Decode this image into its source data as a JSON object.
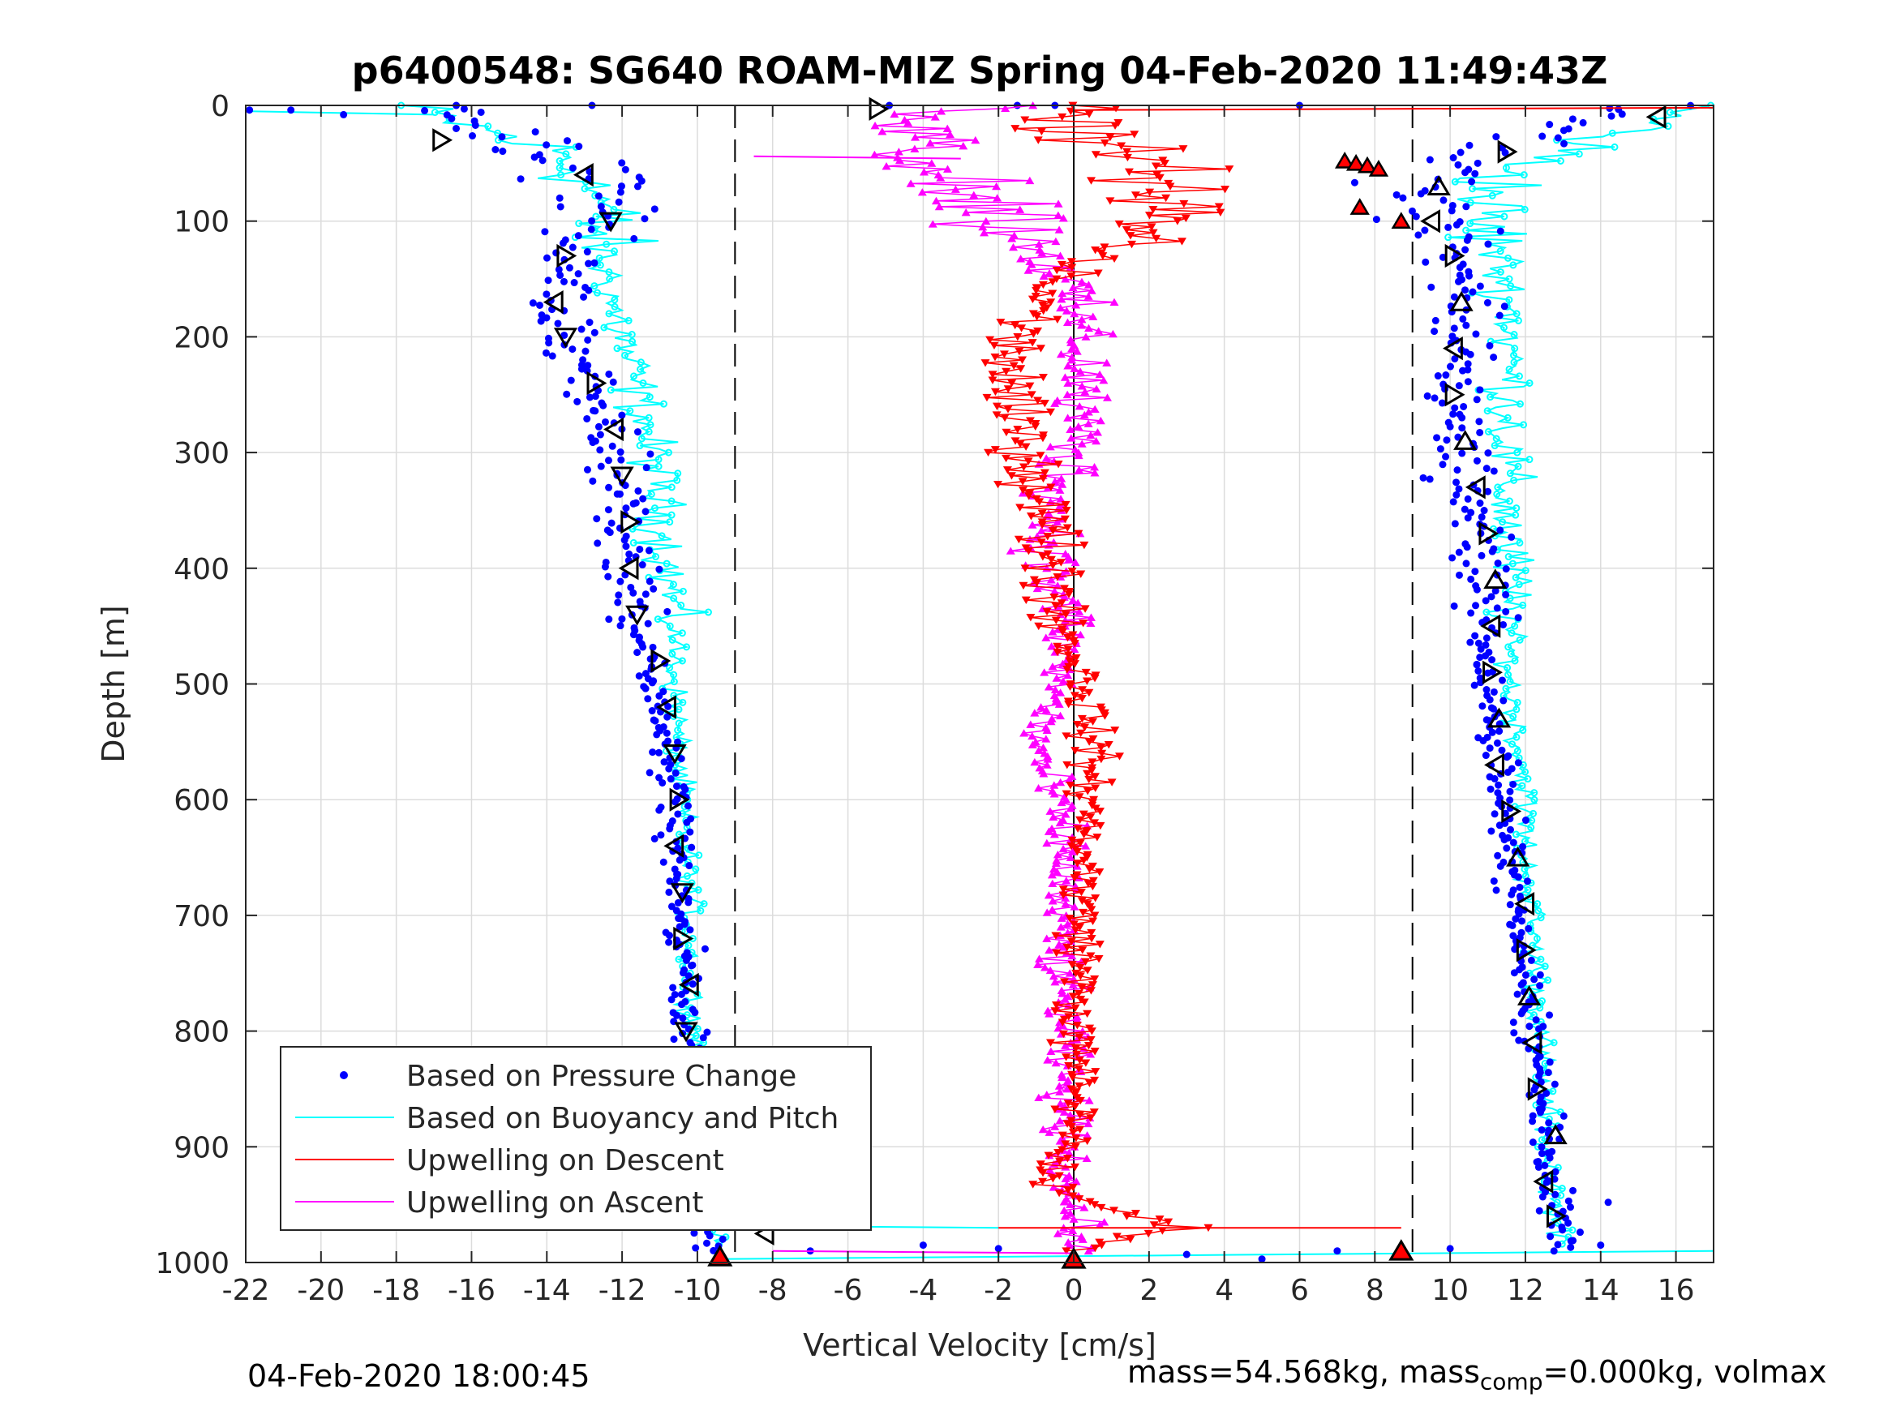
{
  "chart_data": {
    "type": "scatter",
    "title": "p6400548: SG640 ROAM-MIZ Spring 04-Feb-2020 11:49:43Z",
    "xlabel": "Vertical Velocity [cm/s]",
    "ylabel": "Depth [m]",
    "xlim": [
      -22,
      17
    ],
    "ylim": [
      1000,
      0
    ],
    "y_reversed": true,
    "grid": true,
    "xticks": [
      -22,
      -20,
      -18,
      -16,
      -14,
      -12,
      -10,
      -8,
      -6,
      -4,
      -2,
      0,
      2,
      4,
      6,
      8,
      10,
      12,
      14,
      16
    ],
    "yticks": [
      0,
      100,
      200,
      300,
      400,
      500,
      600,
      700,
      800,
      900,
      1000
    ],
    "vlines": [
      -9,
      0,
      9
    ],
    "legend_position": "bottom-left",
    "legend": [
      "Based on Pressure Change",
      "Based on Buoyancy and Pitch",
      "Upwelling on Descent",
      "Upwelling on Ascent"
    ],
    "series": [
      {
        "name": "Based on Pressure Change",
        "color": "#0000ff",
        "marker": "dot",
        "profile_depth": [
          0,
          20,
          40,
          60,
          80,
          100,
          120,
          150,
          180,
          200,
          250,
          300,
          350,
          400,
          450,
          500,
          550,
          600,
          650,
          700,
          750,
          800,
          850,
          900,
          950,
          980
        ],
        "descent_x": [
          -17,
          -15.5,
          -13.8,
          -12.8,
          -12.4,
          -12.5,
          -13.2,
          -13.6,
          -13.8,
          -13.6,
          -12.8,
          -12.4,
          -12,
          -11.8,
          -11.6,
          -11.1,
          -10.8,
          -10.6,
          -10.6,
          -10.4,
          -10.3,
          -10.2,
          -10,
          -9.9,
          -9.8,
          -9.6
        ],
        "ascent_x": [
          15.2,
          13,
          10.8,
          9.6,
          9.3,
          9.8,
          10.2,
          10.4,
          10.3,
          10.2,
          10.2,
          10.3,
          10.6,
          11,
          11,
          11,
          11.2,
          11.4,
          11.6,
          11.8,
          12,
          12.2,
          12.4,
          12.6,
          12.8,
          12.9
        ]
      },
      {
        "name": "Based on Buoyancy and Pitch",
        "color": "#00ffff",
        "marker": "line",
        "profile_depth": [
          0,
          20,
          40,
          60,
          80,
          100,
          120,
          150,
          180,
          200,
          250,
          300,
          350,
          400,
          450,
          500,
          550,
          600,
          650,
          700,
          750,
          800,
          850,
          900,
          950,
          980
        ],
        "descent_x": [
          -18,
          -15.8,
          -13.8,
          -13,
          -12.6,
          -12.6,
          -12.6,
          -12.4,
          -12.2,
          -12,
          -11.6,
          -11.2,
          -11,
          -10.8,
          -10.6,
          -10.6,
          -10.5,
          -10.4,
          -10.3,
          -10.2,
          -10.2,
          -10.1,
          -10,
          -9.8,
          -9.6,
          -9.5
        ],
        "ascent_x": [
          16.5,
          15,
          12.8,
          11.6,
          11,
          10.8,
          11.2,
          11.4,
          11.6,
          11.6,
          11.6,
          11.5,
          11.5,
          11.6,
          11.6,
          11.6,
          11.8,
          12,
          12,
          12.2,
          12.3,
          12.4,
          12.5,
          12.6,
          12.8,
          12.9
        ]
      },
      {
        "name": "Upwelling on Descent",
        "color": "#ff0000",
        "marker": "triangle-down",
        "depth": [
          10,
          30,
          50,
          70,
          90,
          110,
          150,
          200,
          250,
          300,
          350,
          400,
          450,
          500,
          550,
          600,
          650,
          700,
          750,
          800,
          850,
          900,
          930,
          960,
          970,
          990
        ],
        "x": [
          0,
          1,
          1.5,
          2,
          2.5,
          1.8,
          -0.5,
          -1.5,
          -1.8,
          -1.2,
          -0.8,
          -0.5,
          -0.3,
          0.3,
          0.5,
          0.4,
          0.3,
          0.2,
          0.2,
          0,
          0.1,
          0,
          -1,
          1.5,
          3,
          0
        ]
      },
      {
        "name": "Upwelling on Ascent",
        "color": "#ff00ff",
        "marker": "triangle-up",
        "depth": [
          10,
          30,
          50,
          70,
          90,
          110,
          150,
          200,
          250,
          300,
          350,
          400,
          450,
          500,
          550,
          600,
          650,
          700,
          750,
          800,
          850,
          900,
          930,
          960,
          975,
          990
        ],
        "x": [
          -3,
          -4,
          -3.5,
          -2.5,
          -2,
          -1.2,
          -0.3,
          0.3,
          0.2,
          0,
          -0.5,
          -0.6,
          -0.2,
          -0.4,
          -1,
          -0.5,
          -0.2,
          -0.4,
          -0.4,
          -0.2,
          -0.3,
          -0.1,
          -0.2,
          0,
          0.2,
          0
        ]
      }
    ],
    "glider_markers": {
      "descent_depth": [
        30,
        60,
        100,
        130,
        170,
        200,
        240,
        280,
        320,
        360,
        400,
        440,
        480,
        520,
        560,
        600,
        640,
        680,
        720,
        760,
        800,
        840,
        880,
        920,
        960,
        975
      ],
      "descent_x": [
        -16.8,
        -13,
        -12.3,
        -13.5,
        -13.8,
        -13.5,
        -12.7,
        -12.2,
        -12,
        -11.8,
        -11.8,
        -11.6,
        -11,
        -10.8,
        -10.6,
        -10.5,
        -10.6,
        -10.4,
        -10.4,
        -10.2,
        -10.3,
        -10,
        -10.2,
        -9.9,
        -9.8,
        -8.2
      ],
      "ascent_depth": [
        10,
        40,
        70,
        100,
        130,
        170,
        210,
        250,
        290,
        330,
        370,
        410,
        450,
        490,
        530,
        570,
        610,
        650,
        690,
        730,
        770,
        810,
        850,
        890,
        930,
        960
      ],
      "ascent_x": [
        15.5,
        11.5,
        9.7,
        9.5,
        10.1,
        10.3,
        10.1,
        10.1,
        10.4,
        10.7,
        11,
        11.2,
        11.1,
        11.1,
        11.3,
        11.2,
        11.6,
        11.8,
        12,
        12,
        12.1,
        12.2,
        12.3,
        12.8,
        12.5,
        12.8
      ],
      "top_marker_x": -5.2,
      "top_marker_depth": 3
    },
    "surface_markers": [
      {
        "x": -9.4,
        "depth": 995,
        "color": "#ff0000"
      },
      {
        "x": 8.7,
        "depth": 990,
        "color": "#ff0000"
      },
      {
        "x": 0,
        "depth": 997,
        "color": "#ff0000"
      }
    ]
  },
  "footer": {
    "timestamp": "04-Feb-2020 18:00:45",
    "mass_prefix": "mass=54.568kg, mass",
    "mass_sub": "comp",
    "mass_suffix": "=0.000kg, volmax"
  }
}
